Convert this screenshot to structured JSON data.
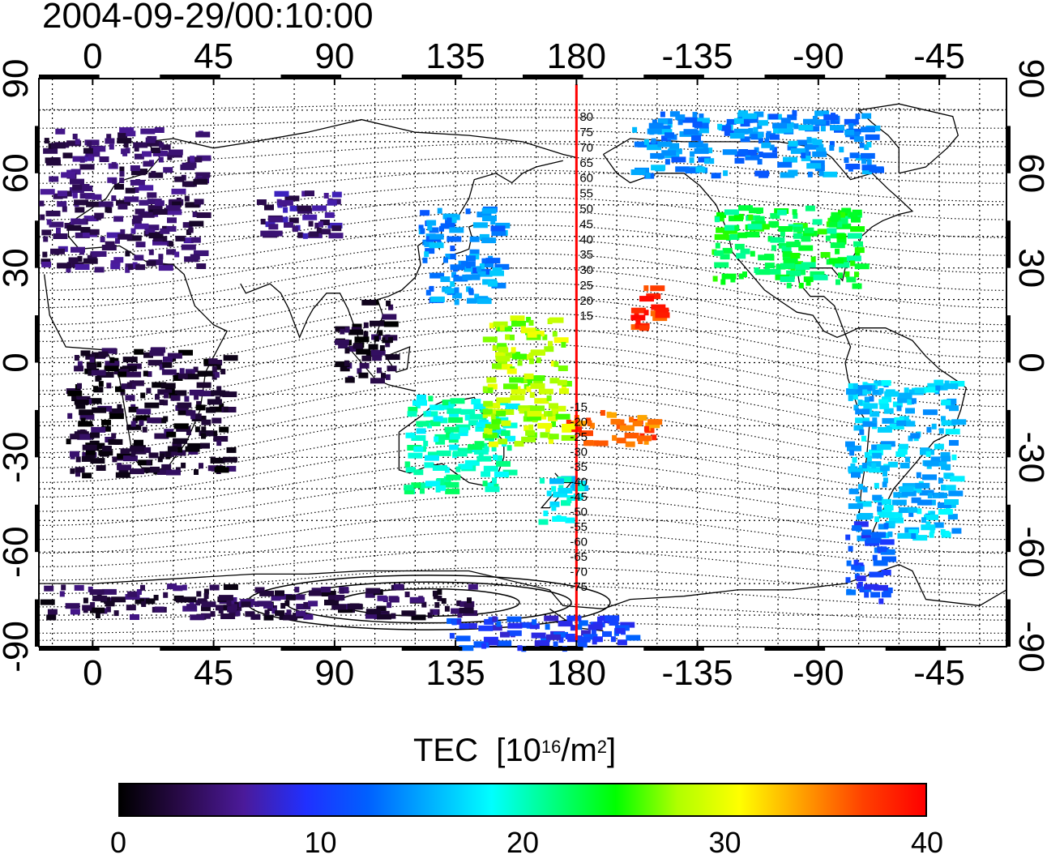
{
  "title": "2004-09-29/00:10:00",
  "map": {
    "x_ticks": [
      "0",
      "45",
      "90",
      "135",
      "180",
      "-135",
      "-90",
      "-45"
    ],
    "y_ticks": [
      "90",
      "60",
      "30",
      "0",
      "-30",
      "-60",
      "-90"
    ],
    "grid": true,
    "meridian_line": {
      "longitude": 180,
      "color": "#ff0000"
    },
    "contour_labels_north": [
      "80",
      "75",
      "70",
      "65",
      "60",
      "55",
      "50",
      "45",
      "40",
      "35",
      "30",
      "25",
      "20",
      "15"
    ],
    "contour_labels_south": [
      "-15",
      "-20",
      "-25",
      "-30",
      "-35",
      "-40",
      "-45",
      "-50",
      "-55",
      "-60",
      "-65",
      "-70",
      "-75"
    ]
  },
  "colorbar": {
    "title": "TEC",
    "unit_base": "[10",
    "unit_exp": "16",
    "unit_mid": "/m",
    "unit_exp2": "2",
    "unit_end": "]",
    "ticks": [
      "0",
      "10",
      "20",
      "30",
      "40"
    ],
    "range": [
      0,
      40
    ],
    "colors": [
      "#000000",
      "#2a0a4a",
      "#4b1a9a",
      "#2030ff",
      "#0060ff",
      "#00b0ff",
      "#00ffff",
      "#00ff80",
      "#00ff00",
      "#b0ff00",
      "#ffff00",
      "#ffa000",
      "#ff4000",
      "#ff0000"
    ]
  },
  "chart_data": {
    "type": "heatmap",
    "title": "2004-09-29/00:10:00",
    "xlabel": "",
    "ylabel": "",
    "xlim": [
      -20,
      340
    ],
    "ylim": [
      -90,
      90
    ],
    "value_label": "TEC [10^16/m^2]",
    "value_range": [
      0,
      40
    ],
    "regions": [
      {
        "lon": [
          -20,
          40
        ],
        "lat": [
          30,
          75
        ],
        "tec": 4
      },
      {
        "lon": [
          60,
          90
        ],
        "lat": [
          40,
          55
        ],
        "tec": 5
      },
      {
        "lon": [
          120,
          150
        ],
        "lat": [
          20,
          50
        ],
        "tec": 14
      },
      {
        "lon": [
          200,
          290
        ],
        "lat": [
          60,
          80
        ],
        "tec": 14
      },
      {
        "lon": [
          230,
          285
        ],
        "lat": [
          25,
          50
        ],
        "tec": 23
      },
      {
        "lon": [
          -10,
          50
        ],
        "lat": [
          -35,
          5
        ],
        "tec": 2
      },
      {
        "lon": [
          90,
          110
        ],
        "lat": [
          -5,
          20
        ],
        "tec": 2
      },
      {
        "lon": [
          115,
          155
        ],
        "lat": [
          -40,
          -10
        ],
        "tec": 20
      },
      {
        "lon": [
          165,
          180
        ],
        "lat": [
          -50,
          -35
        ],
        "tec": 18
      },
      {
        "lon": [
          175,
          210
        ],
        "lat": [
          -25,
          -15
        ],
        "tec": 36
      },
      {
        "lon": [
          200,
          210
        ],
        "lat": [
          10,
          25
        ],
        "tec": 38
      },
      {
        "lon": [
          145,
          175
        ],
        "lat": [
          -25,
          15
        ],
        "tec": 28
      },
      {
        "lon": [
          280,
          320
        ],
        "lat": [
          -55,
          -5
        ],
        "tec": 16
      },
      {
        "lon": [
          280,
          295
        ],
        "lat": [
          -75,
          -50
        ],
        "tec": 11
      },
      {
        "lon": [
          -20,
          140
        ],
        "lat": [
          -80,
          -70
        ],
        "tec": 3
      },
      {
        "lon": [
          130,
          200
        ],
        "lat": [
          -90,
          -80
        ],
        "tec": 10
      }
    ]
  }
}
